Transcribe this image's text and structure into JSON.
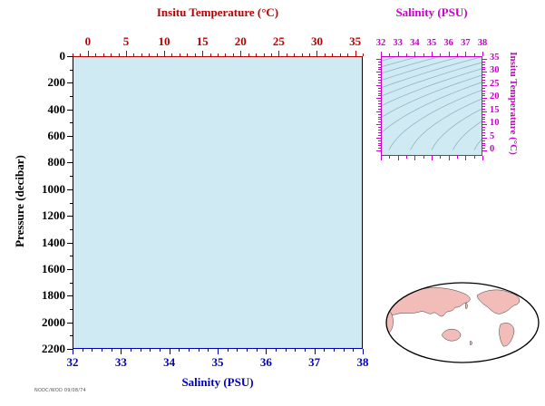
{
  "main_plot": {
    "background": "#cfeaf3",
    "top_axis": {
      "label": "Insitu Temperature (°C)",
      "color": "#bb0000",
      "ticks": [
        "0",
        "5",
        "10",
        "15",
        "20",
        "25",
        "30",
        "35"
      ]
    },
    "bottom_axis": {
      "label": "Salinity (PSU)",
      "color": "#0000bb",
      "ticks": [
        "32",
        "33",
        "34",
        "35",
        "36",
        "37",
        "38"
      ]
    },
    "left_axis": {
      "label": "Pressure (decibar)",
      "color": "#000000",
      "ticks": [
        "0",
        "200",
        "400",
        "600",
        "800",
        "1000",
        "1200",
        "1400",
        "1600",
        "1800",
        "2000",
        "2200"
      ]
    }
  },
  "inset_plot": {
    "background": "#cfeaf3",
    "color": "#cc00cc",
    "top_axis": {
      "label": "Salinity (PSU)",
      "ticks": [
        "32",
        "33",
        "34",
        "35",
        "36",
        "37",
        "38"
      ]
    },
    "right_axis": {
      "label": "Insitu Temperature (°C)",
      "ticks": [
        "35",
        "30",
        "25",
        "20",
        "15",
        "10",
        "5",
        "0"
      ]
    }
  },
  "map": {
    "land_color": "#f2bdb8",
    "ocean_color": "#ffffff",
    "outline_color": "#000000"
  },
  "footer": {
    "stamp": "NODC/WOD 09/08/74"
  },
  "chart_data": [
    {
      "type": "scatter",
      "title": "Vertical profile frame (no data plotted)",
      "xlabel": "Salinity (PSU)",
      "xlim": [
        32,
        38
      ],
      "x2label": "Insitu Temperature (°C)",
      "x2lim": [
        -2,
        36
      ],
      "x2_ticks": [
        0,
        5,
        10,
        15,
        20,
        25,
        30,
        35
      ],
      "ylabel": "Pressure (decibar)",
      "ylim": [
        2200,
        0
      ],
      "y_ticks": [
        0,
        200,
        400,
        600,
        800,
        1000,
        1200,
        1400,
        1600,
        1800,
        2000,
        2200
      ],
      "grid": false,
      "series": []
    },
    {
      "type": "line",
      "title": "T-S diagram inset with isopycnal (density) contour curves, no data plotted",
      "xlabel": "Salinity (PSU)",
      "xlim": [
        32,
        38
      ],
      "x_ticks": [
        32,
        33,
        34,
        35,
        36,
        37,
        38
      ],
      "ylabel": "Insitu Temperature (°C)",
      "ylim": [
        -2,
        36
      ],
      "y_ticks": [
        0,
        5,
        10,
        15,
        20,
        25,
        30,
        35
      ],
      "grid": false,
      "series": []
    }
  ]
}
